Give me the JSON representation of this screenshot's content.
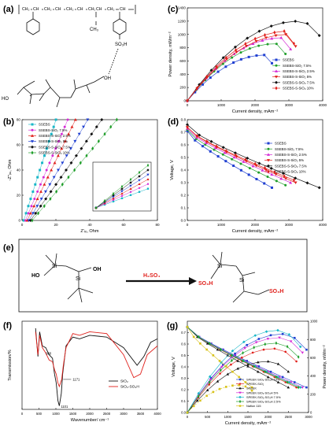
{
  "figure": {
    "labels": {
      "a": "(a)",
      "b": "(b)",
      "c": "(c)",
      "d": "(d)",
      "e": "(e)",
      "f": "(f)",
      "g": "(g)"
    },
    "colors": {
      "black": "#111111",
      "red": "#e0201b",
      "blue": "#1f3fd1",
      "magenta": "#d52bd5",
      "green": "#1f9e2a",
      "cyan": "#19b7c8",
      "pink": "#ff5aa0",
      "yellow": "#d8c21a",
      "gray": "#666666"
    }
  },
  "panel_a": {
    "polymer_chain": [
      "CH₂",
      "CH",
      "CH₂",
      "CH",
      "CH₂",
      "CH",
      "CH₂",
      "CH",
      "CH₂",
      "CH"
    ],
    "methyl": "CH₃",
    "sulfo": "SO₃H",
    "silica_oh_left": "HO",
    "silica_oh_right": "OH"
  },
  "panel_e": {
    "left_groups": [
      "HO",
      "OH"
    ],
    "reagent": "H₂SO₄",
    "right_groups": [
      "SO₃H",
      "SO₃H"
    ],
    "si": "Si"
  },
  "chart_data": [
    {
      "id": "c",
      "type": "line",
      "xlabel": "Current density, mAm⁻²",
      "ylabel": "Power density, mWm⁻²",
      "xlim": [
        0,
        4000
      ],
      "ylim": [
        0,
        1400
      ],
      "xticks": [
        0,
        1000,
        2000,
        3000,
        4000
      ],
      "yticks": [
        0,
        200,
        400,
        600,
        800,
        1000,
        1200,
        1400
      ],
      "legend": [
        "SSEBS",
        "SSEBS-SiO₂ 7.5%",
        "SSEBS-S-SiO₂ 2.5%",
        "SSEBS-S-SiO₂ 5%",
        "SSEBS-S-SiO₂ 7.5%",
        "SSEBS-S-SiO₂ 10%"
      ],
      "series": [
        {
          "color": "#1f3fd1",
          "peak": [
            2300,
            690
          ],
          "end": 2500
        },
        {
          "color": "#1f9e2a",
          "peak": [
            2600,
            860
          ],
          "end": 2900
        },
        {
          "color": "#d52bd5",
          "peak": [
            2800,
            950
          ],
          "end": 3050
        },
        {
          "color": "#e0201b",
          "peak": [
            3000,
            1000
          ],
          "end": 3200
        },
        {
          "color": "#111111",
          "peak": [
            3300,
            1200
          ],
          "end": 3900
        },
        {
          "color": "#e0201b",
          "peak": [
            3000,
            1050
          ],
          "end": 3150
        }
      ]
    },
    {
      "id": "b",
      "type": "scatter",
      "xlabel": "Z'ᵣₑ, Ohm",
      "ylabel": "-Z''ᵢₘ, Ohm",
      "xlim": [
        0,
        80
      ],
      "ylim": [
        0,
        80
      ],
      "xticks": [
        0,
        20,
        40,
        60,
        80
      ],
      "yticks": [
        0,
        20,
        40,
        60,
        80
      ],
      "legend": [
        "SSEBS",
        "SSEBS-SiO₂ 7.5%",
        "SSEBS-S-SiO₂ 2.5%",
        "SSEBS-S-SiO₂ 5%",
        "SSEBS-S-SiO₂ 7.5%",
        "SSEBS-S-SiO₂ 10%"
      ],
      "series": [
        {
          "color": "#19b7c8",
          "x0": 1,
          "slope": 4.2
        },
        {
          "color": "#d52bd5",
          "x0": 2,
          "slope": 3.2
        },
        {
          "color": "#e0201b",
          "x0": 3,
          "slope": 2.8
        },
        {
          "color": "#1f3fd1",
          "x0": 4,
          "slope": 2.3
        },
        {
          "color": "#111111",
          "x0": 5,
          "slope": 1.9
        },
        {
          "color": "#1f9e2a",
          "x0": 6,
          "slope": 1.6
        }
      ]
    },
    {
      "id": "d",
      "type": "line",
      "xlabel": "Current density, mAm⁻²",
      "ylabel": "Voltage, V",
      "xlim": [
        0,
        4000
      ],
      "ylim": [
        0.0,
        0.8
      ],
      "xticks": [
        0,
        1000,
        2000,
        3000,
        4000
      ],
      "yticks": [
        0.0,
        0.1,
        0.2,
        0.3,
        0.4,
        0.5,
        0.6,
        0.7,
        0.8
      ],
      "legend": [
        "SSEBS",
        "SSEBS-SiO₂ 7.5%",
        "SSEBS-S-SiO₂ 2.5%",
        "SSEBS-S-SiO₂ 5%",
        "SSEBS-S-SiO₂ 7.5%",
        "SSEBS-S-SiO₂ 10%"
      ],
      "series": [
        {
          "color": "#1f3fd1",
          "v0": 0.71,
          "end": [
            2500,
            0.26
          ]
        },
        {
          "color": "#1f9e2a",
          "v0": 0.72,
          "end": [
            2900,
            0.28
          ]
        },
        {
          "color": "#d52bd5",
          "v0": 0.73,
          "end": [
            3050,
            0.3
          ]
        },
        {
          "color": "#e0201b",
          "v0": 0.74,
          "end": [
            3200,
            0.3
          ]
        },
        {
          "color": "#111111",
          "v0": 0.76,
          "end": [
            3900,
            0.26
          ]
        },
        {
          "color": "#e0201b",
          "v0": 0.74,
          "end": [
            3150,
            0.32
          ]
        }
      ]
    },
    {
      "id": "f",
      "type": "line",
      "xlabel": "Wavenumber/ cm⁻¹",
      "ylabel": "Transmission/%",
      "xlim": [
        0,
        4000
      ],
      "xticks": [
        0,
        500,
        1000,
        1500,
        2000,
        2500,
        3000,
        3500,
        4000
      ],
      "annotations": [
        "960",
        "1171",
        "1101"
      ],
      "legend": [
        "SiO₂",
        "SiO₂-SO₃H"
      ],
      "series": [
        {
          "name": "SiO₂",
          "color": "#111111"
        },
        {
          "name": "SiO₂-SO₃H",
          "color": "#e0201b"
        }
      ]
    },
    {
      "id": "g",
      "type": "line",
      "xlabel": "Current density, mAm⁻²",
      "ylabel": "Voltage, V",
      "ylabel_right": "Power density, mWm⁻²",
      "xlim": [
        0,
        3000
      ],
      "ylim": [
        0.0,
        0.8
      ],
      "ylim_right": [
        0,
        1000
      ],
      "xticks": [
        0,
        500,
        1000,
        1500,
        2000,
        2500,
        3000
      ],
      "yticks": [
        0.0,
        0.1,
        0.2,
        0.3,
        0.4,
        0.5,
        0.6,
        0.7
      ],
      "yticks_right": [
        0,
        200,
        400,
        600,
        800,
        1000
      ],
      "legend": [
        "SPEEK-SiO₂-SO₃H 10%",
        "SPEEK-SiO₂",
        "SPEEK",
        "SPEEK-SiO₂-SO₃H 5%",
        "SPEEK-SiO₂-SO₃H 7.5%",
        "SPEEK-SiO₂-SO₃H 2.5%",
        "Nafion 115"
      ],
      "series": [
        {
          "color": "#1f3fd1"
        },
        {
          "color": "#e0201b"
        },
        {
          "color": "#111111"
        },
        {
          "color": "#d52bd5"
        },
        {
          "color": "#19b7c8"
        },
        {
          "color": "#1f9e2a"
        },
        {
          "color": "#d8c21a"
        }
      ]
    }
  ]
}
